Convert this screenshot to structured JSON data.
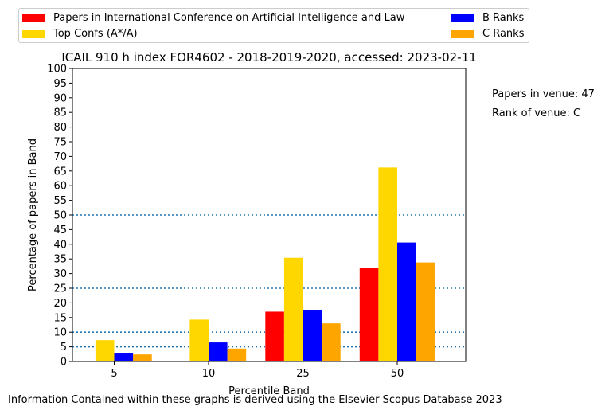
{
  "chart_data": {
    "type": "bar",
    "title": "ICAIL 910 h index FOR4602 - 2018-2019-2020, accessed: 2023-02-11",
    "xlabel": "Percentile Band",
    "ylabel": "Percentage of papers in Band",
    "categories": [
      "5",
      "10",
      "25",
      "50"
    ],
    "ylim": [
      0,
      100
    ],
    "yticks": [
      "0",
      "5",
      "10",
      "15",
      "20",
      "25",
      "30",
      "35",
      "40",
      "45",
      "50",
      "55",
      "60",
      "65",
      "70",
      "75",
      "80",
      "85",
      "90",
      "95",
      "100"
    ],
    "reference_lines": [
      5,
      10,
      25,
      50
    ],
    "series": [
      {
        "name": "Papers in International Conference on Artificial Intelligence and Law",
        "color": "#ff0000",
        "values": [
          0,
          0,
          17.0,
          31.9
        ]
      },
      {
        "name": "Top Confs (A*/A)",
        "color": "#ffd700",
        "values": [
          7.3,
          14.3,
          35.4,
          66.2
        ]
      },
      {
        "name": "B Ranks",
        "color": "#0000ff",
        "values": [
          2.9,
          6.5,
          17.6,
          40.6
        ]
      },
      {
        "name": "C Ranks",
        "color": "#ffa500",
        "values": [
          2.4,
          4.4,
          13.0,
          33.8
        ]
      }
    ],
    "legend_position": "top",
    "grid": false
  },
  "side_notes": {
    "papers_in_venue": "Papers in venue: 47",
    "rank_of_venue": "Rank of venue: C"
  },
  "footer": "Information Contained within these graphs is derived using the Elsevier Scopus Database 2023"
}
